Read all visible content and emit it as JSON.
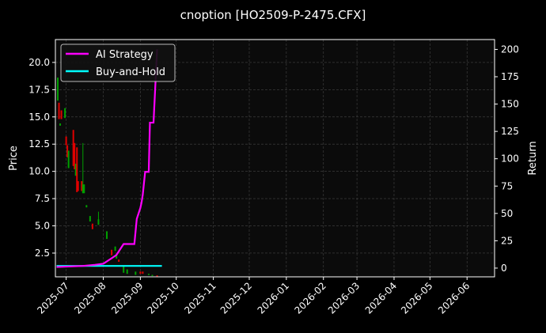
{
  "chart_data": {
    "type": "candlestick+line",
    "title": "cnoption [HO2509-P-2475.CFX]",
    "xlabel": "",
    "ylabel": "Price",
    "y2label": "Return",
    "xlim": [
      "2025-06-22",
      "2026-06-24"
    ],
    "ylim": [
      0.32,
      22.1
    ],
    "y2lim": [
      -8,
      209
    ],
    "grid": true,
    "legend_position": "top-left",
    "x_ticks": [
      "2025-07",
      "2025-08",
      "2025-09",
      "2025-10",
      "2025-11",
      "2025-12",
      "2026-01",
      "2026-02",
      "2026-03",
      "2026-04",
      "2026-05",
      "2026-06"
    ],
    "y_ticks": [
      "2.5",
      "5.0",
      "7.5",
      "10.0",
      "12.5",
      "15.0",
      "17.5",
      "20.0"
    ],
    "y2_ticks": [
      "0",
      "25",
      "50",
      "75",
      "100",
      "125",
      "150",
      "175",
      "200"
    ],
    "candles": [
      [
        "2025-06-24",
        16.5,
        18.6,
        16.5,
        18.6
      ],
      [
        "2025-06-25",
        16.3,
        16.3,
        14.8,
        14.8
      ],
      [
        "2025-06-26",
        14.2,
        14.4,
        14.2,
        14.4
      ],
      [
        "2025-06-27",
        15.6,
        15.6,
        14.8,
        14.8
      ],
      [
        "2025-06-30",
        14.9,
        15.8,
        14.9,
        15.8
      ],
      [
        "2025-07-01",
        13.2,
        13.2,
        12.4,
        12.4
      ],
      [
        "2025-07-02",
        12.4,
        12.4,
        11.3,
        11.3
      ],
      [
        "2025-07-03",
        10.3,
        11.9,
        10.3,
        11.9
      ],
      [
        "2025-07-07",
        13.8,
        13.8,
        10.5,
        10.5
      ],
      [
        "2025-07-08",
        12.6,
        12.6,
        10.2,
        10.2
      ],
      [
        "2025-07-09",
        9.6,
        10.7,
        9.6,
        10.7
      ],
      [
        "2025-07-10",
        12.2,
        12.2,
        8.1,
        8.1
      ],
      [
        "2025-07-11",
        9.1,
        9.1,
        8.2,
        8.2
      ],
      [
        "2025-07-14",
        9.1,
        9.1,
        8.2,
        8.2
      ],
      [
        "2025-07-15",
        8.0,
        12.6,
        8.0,
        8.8
      ],
      [
        "2025-07-16",
        8.0,
        8.8,
        8.0,
        8.8
      ],
      [
        "2025-07-18",
        6.7,
        6.9,
        6.7,
        6.9
      ],
      [
        "2025-07-21",
        5.4,
        5.9,
        5.4,
        5.9
      ],
      [
        "2025-07-23",
        5.2,
        5.2,
        4.7,
        4.7
      ],
      [
        "2025-07-28",
        5.1,
        6.3,
        5.1,
        5.6
      ],
      [
        "2025-08-04",
        3.8,
        4.5,
        3.8,
        4.5
      ],
      [
        "2025-08-08",
        2.8,
        2.8,
        2.3,
        2.3
      ],
      [
        "2025-08-11",
        2.7,
        3.1,
        2.7,
        3.1
      ],
      [
        "2025-08-12",
        2.0,
        2.4,
        2.0,
        2.4
      ],
      [
        "2025-08-14",
        1.9,
        1.9,
        1.7,
        1.7
      ],
      [
        "2025-08-18",
        0.7,
        1.3,
        0.7,
        1.3
      ],
      [
        "2025-08-21",
        0.6,
        1.0,
        0.6,
        1.0
      ],
      [
        "2025-08-28",
        0.5,
        0.8,
        0.5,
        0.8
      ],
      [
        "2025-09-01",
        0.8,
        0.8,
        0.6,
        0.6
      ],
      [
        "2025-09-03",
        0.8,
        0.8,
        0.6,
        0.6
      ],
      [
        "2025-09-08",
        0.5,
        0.6,
        0.5,
        0.6
      ],
      [
        "2025-09-11",
        0.45,
        0.5,
        0.45,
        0.5
      ],
      [
        "2025-09-15",
        0.45,
        0.45,
        0.4,
        0.4
      ]
    ],
    "series": [
      {
        "name": "AI Strategy",
        "color": "#ff00ff",
        "axis": "right",
        "points": [
          [
            "2025-06-23",
            1
          ],
          [
            "2025-07-15",
            2
          ],
          [
            "2025-07-25",
            3
          ],
          [
            "2025-08-01",
            4
          ],
          [
            "2025-08-08",
            9
          ],
          [
            "2025-08-12",
            12
          ],
          [
            "2025-08-18",
            22
          ],
          [
            "2025-08-27",
            22
          ],
          [
            "2025-08-29",
            45
          ],
          [
            "2025-09-01",
            55
          ],
          [
            "2025-09-02",
            60
          ],
          [
            "2025-09-03",
            67
          ],
          [
            "2025-09-05",
            88
          ],
          [
            "2025-09-08",
            88
          ],
          [
            "2025-09-09",
            133
          ],
          [
            "2025-09-12",
            133
          ],
          [
            "2025-09-15",
            200
          ]
        ]
      },
      {
        "name": "Buy-and-Hold",
        "color": "#00ffff",
        "axis": "right",
        "points": [
          [
            "2025-06-23",
            2
          ],
          [
            "2025-09-19",
            2
          ]
        ]
      }
    ],
    "up_color": "#00a000",
    "down_color": "#e00000"
  }
}
